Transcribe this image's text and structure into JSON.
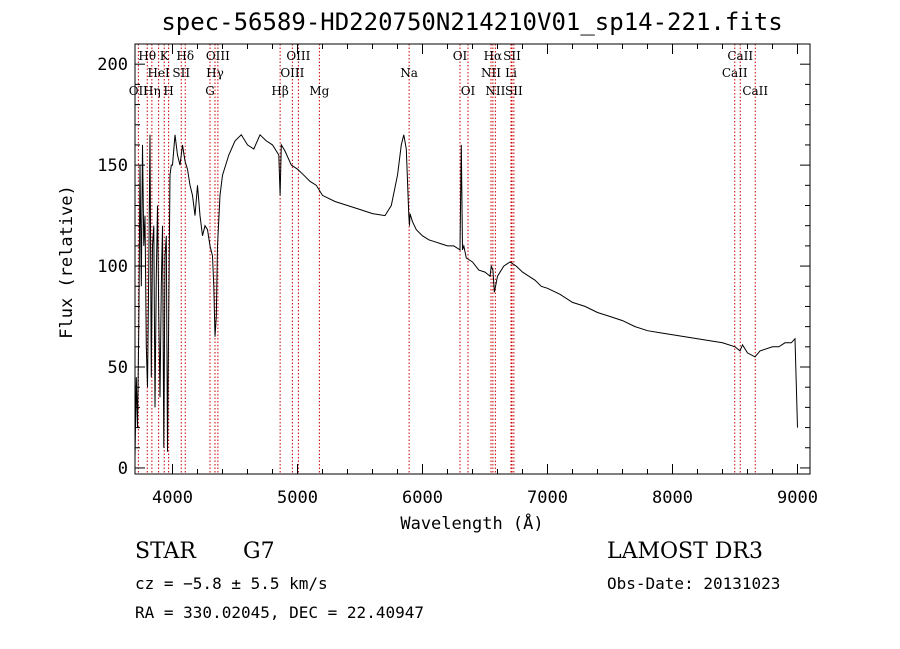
{
  "chart_data": {
    "type": "line",
    "title": "spec-56589-HD220750N214210V01_sp14-221.fits",
    "xlabel": "Wavelength (Å)",
    "ylabel": "Flux (relative)",
    "xlim": [
      3700,
      9100
    ],
    "ylim": [
      -3,
      210
    ],
    "xticks": [
      4000,
      5000,
      6000,
      7000,
      8000,
      9000
    ],
    "yticks": [
      0,
      50,
      100,
      150,
      200
    ],
    "grid": false,
    "series": [
      {
        "x": [
          3700,
          3710,
          3720,
          3730,
          3740,
          3750,
          3760,
          3770,
          3780,
          3790,
          3800,
          3810,
          3820,
          3830,
          3840,
          3850,
          3860,
          3870,
          3880,
          3890,
          3900,
          3910,
          3920,
          3930,
          3940,
          3950,
          3960,
          3970,
          3980,
          3990,
          4000,
          4020,
          4040,
          4060,
          4080,
          4100,
          4120,
          4140,
          4160,
          4180,
          4200,
          4220,
          4240,
          4260,
          4280,
          4300,
          4320,
          4330,
          4340,
          4350,
          4360,
          4380,
          4400,
          4450,
          4500,
          4550,
          4600,
          4650,
          4700,
          4750,
          4800,
          4850,
          4861,
          4870,
          4900,
          4950,
          5000,
          5050,
          5100,
          5150,
          5200,
          5300,
          5400,
          5500,
          5600,
          5700,
          5750,
          5800,
          5830,
          5850,
          5870,
          5890,
          5896,
          5900,
          5920,
          5950,
          6000,
          6050,
          6100,
          6150,
          6200,
          6250,
          6300,
          6310,
          6320,
          6330,
          6350,
          6400,
          6450,
          6500,
          6540,
          6550,
          6563,
          6575,
          6600,
          6650,
          6700,
          6750,
          6800,
          6850,
          6900,
          6950,
          7000,
          7100,
          7200,
          7300,
          7400,
          7500,
          7600,
          7700,
          7800,
          7900,
          8000,
          8100,
          8200,
          8300,
          8400,
          8500,
          8540,
          8560,
          8600,
          8660,
          8700,
          8800,
          8850,
          8900,
          8950,
          8980,
          9000
        ],
        "y": [
          5,
          45,
          20,
          70,
          150,
          90,
          160,
          110,
          125,
          60,
          40,
          100,
          165,
          45,
          110,
          120,
          30,
          95,
          130,
          75,
          35,
          90,
          120,
          10,
          105,
          115,
          8,
          80,
          145,
          150,
          150,
          165,
          155,
          150,
          160,
          152,
          148,
          140,
          135,
          125,
          140,
          125,
          115,
          120,
          118,
          110,
          105,
          90,
          65,
          75,
          110,
          135,
          145,
          155,
          162,
          165,
          160,
          158,
          165,
          162,
          160,
          155,
          135,
          160,
          157,
          150,
          148,
          145,
          142,
          140,
          135,
          132,
          130,
          128,
          126,
          125,
          130,
          145,
          160,
          165,
          158,
          125,
          120,
          126,
          122,
          118,
          115,
          113,
          112,
          111,
          110,
          110,
          108,
          160,
          108,
          110,
          104,
          102,
          98,
          97,
          95,
          100,
          98,
          87,
          95,
          100,
          102,
          100,
          97,
          95,
          93,
          90,
          89,
          86,
          82,
          80,
          77,
          75,
          73,
          70,
          68,
          67,
          66,
          65,
          64,
          63,
          62,
          60,
          58,
          61,
          57,
          55,
          58,
          60,
          60,
          62,
          62,
          64,
          20
        ]
      }
    ],
    "line_markers": [
      {
        "label": "OII",
        "x": 3727,
        "row": 3
      },
      {
        "label": "Hθ",
        "x": 3798,
        "row": 1
      },
      {
        "label": "Hη",
        "x": 3835,
        "row": 3
      },
      {
        "label": "HeI",
        "x": 3889,
        "row": 2
      },
      {
        "label": "K",
        "x": 3934,
        "row": 1
      },
      {
        "label": "H",
        "x": 3969,
        "row": 3
      },
      {
        "label": "SII",
        "x": 4070,
        "row": 2
      },
      {
        "label": "Hδ",
        "x": 4102,
        "row": 1
      },
      {
        "label": "Hγ",
        "x": 4340,
        "row": 2
      },
      {
        "label": "G",
        "x": 4300,
        "row": 3
      },
      {
        "label": "OIII",
        "x": 4363,
        "row": 1
      },
      {
        "label": "Hβ",
        "x": 4861,
        "row": 3
      },
      {
        "label": "OIII",
        "x": 4959,
        "row": 2
      },
      {
        "label": "OIII",
        "x": 5007,
        "row": 1
      },
      {
        "label": "Mg",
        "x": 5175,
        "row": 3
      },
      {
        "label": "Na",
        "x": 5893,
        "row": 2
      },
      {
        "label": "OI",
        "x": 6300,
        "row": 1
      },
      {
        "label": "OI",
        "x": 6364,
        "row": 3
      },
      {
        "label": "NII",
        "x": 6548,
        "row": 2
      },
      {
        "label": "Hα",
        "x": 6563,
        "row": 1
      },
      {
        "label": "NII",
        "x": 6583,
        "row": 3
      },
      {
        "label": "Li",
        "x": 6708,
        "row": 2
      },
      {
        "label": "SII",
        "x": 6716,
        "row": 1
      },
      {
        "label": "SII",
        "x": 6731,
        "row": 3
      },
      {
        "label": "CaII",
        "x": 8498,
        "row": 2
      },
      {
        "label": "CaII",
        "x": 8542,
        "row": 1
      },
      {
        "label": "CaII",
        "x": 8662,
        "row": 3
      }
    ]
  },
  "info": {
    "class": "STAR",
    "subclass": "G7",
    "cz": "cz = −5.8 ± 5.5 km/s",
    "coords": "RA = 330.02045, DEC =  22.40947",
    "survey": "LAMOST DR3",
    "obs_date": "Obs-Date: 20131023"
  }
}
